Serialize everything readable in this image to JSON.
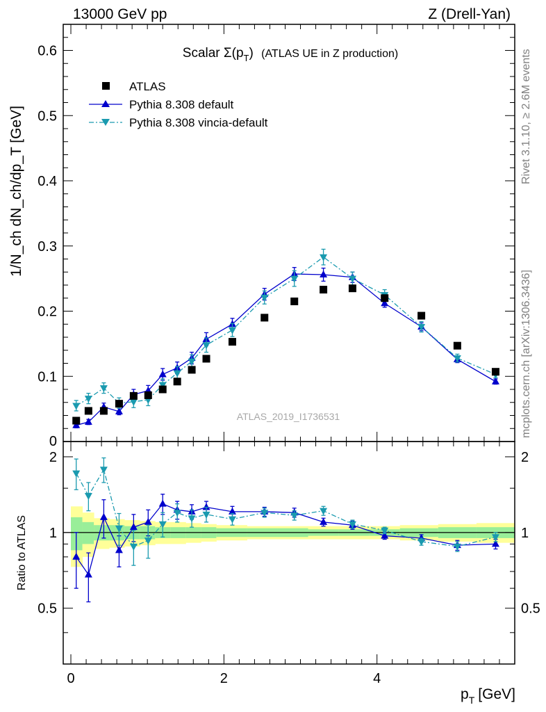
{
  "header": {
    "energy_label": "13000 GeV pp",
    "process_label": "Z (Drell-Yan)"
  },
  "side_labels": {
    "rivet": "Rivet 3.1.10, ≥ 2.6M events",
    "mcplots": "mcplots.cern.ch [arXiv:1306.3436]"
  },
  "chart_data": {
    "type": "scatter",
    "title_main": "Scalar Σ(p",
    "title_sub": "T",
    "title_close": ")",
    "title_rest": "(ATLAS UE in Z production)",
    "analysis_id": "ATLAS_2019_I1736531",
    "xlabel": "p",
    "xlabel_sub": "T",
    "xlabel_unit": "[GeV]",
    "ylabel": "1/N_ch dN_ch/dp_T [GeV]",
    "ratio_ylabel": "Ratio to ATLAS",
    "xlim": [
      -0.1,
      5.8
    ],
    "ylim": [
      0,
      0.64
    ],
    "ratio_ylim": [
      0.3,
      2.3
    ],
    "x_ticks": [
      "0",
      "2",
      "4"
    ],
    "y_ticks": [
      "0.1",
      "0.2",
      "0.3",
      "0.4",
      "0.5",
      "0.6"
    ],
    "y_zero_tick": "0",
    "ratio_ticks": [
      "0.5",
      "1",
      "2"
    ],
    "legend_position": "top-left",
    "x": [
      0.07,
      0.23,
      0.43,
      0.63,
      0.82,
      1.01,
      1.2,
      1.39,
      1.58,
      1.77,
      2.11,
      2.53,
      2.92,
      3.3,
      3.68,
      4.1,
      4.58,
      5.05,
      5.55
    ],
    "band_edges": [
      0,
      0.15,
      0.3,
      0.5,
      0.7,
      0.9,
      1.1,
      1.3,
      1.5,
      1.7,
      1.9,
      2.3,
      2.7,
      3.1,
      3.5,
      3.9,
      4.3,
      4.8,
      5.3,
      5.8
    ],
    "band_yellow": [
      0.27,
      0.2,
      0.14,
      0.13,
      0.12,
      0.11,
      0.1,
      0.1,
      0.09,
      0.08,
      0.07,
      0.06,
      0.06,
      0.06,
      0.06,
      0.06,
      0.07,
      0.08,
      0.09
    ],
    "band_green": [
      0.15,
      0.1,
      0.07,
      0.07,
      0.06,
      0.06,
      0.05,
      0.05,
      0.05,
      0.05,
      0.04,
      0.04,
      0.04,
      0.03,
      0.03,
      0.03,
      0.04,
      0.05,
      0.05
    ],
    "series": [
      {
        "name": "ATLAS",
        "kind": "data",
        "color": "#000000",
        "values": [
          0.032,
          0.047,
          0.047,
          0.058,
          0.07,
          0.071,
          0.08,
          0.092,
          0.11,
          0.127,
          0.153,
          0.19,
          0.215,
          0.233,
          0.235,
          0.22,
          0.193,
          0.147,
          0.107
        ],
        "errors": [
          0.002,
          0.002,
          0.002,
          0.002,
          0.002,
          0.002,
          0.002,
          0.002,
          0.002,
          0.002,
          0.002,
          0.003,
          0.003,
          0.003,
          0.003,
          0.003,
          0.003,
          0.003,
          0.003
        ]
      },
      {
        "name": "Pythia 8.308 default",
        "kind": "mc",
        "color": "#0000cc",
        "values": [
          0.025,
          0.03,
          0.053,
          0.046,
          0.072,
          0.078,
          0.103,
          0.113,
          0.128,
          0.157,
          0.18,
          0.226,
          0.257,
          0.256,
          0.252,
          0.212,
          0.176,
          0.126,
          0.092
        ],
        "errors": [
          0.004,
          0.004,
          0.006,
          0.005,
          0.008,
          0.008,
          0.009,
          0.009,
          0.009,
          0.01,
          0.009,
          0.009,
          0.01,
          0.01,
          0.008,
          0.006,
          0.006,
          0.005,
          0.004
        ],
        "ratio": [
          0.8,
          0.68,
          1.15,
          0.85,
          1.05,
          1.1,
          1.3,
          1.23,
          1.21,
          1.26,
          1.21,
          1.21,
          1.2,
          1.1,
          1.07,
          0.97,
          0.95,
          0.89,
          0.9
        ],
        "ratio_errors": [
          0.2,
          0.15,
          0.2,
          0.12,
          0.13,
          0.13,
          0.12,
          0.1,
          0.08,
          0.07,
          0.06,
          0.05,
          0.05,
          0.04,
          0.04,
          0.03,
          0.03,
          0.04,
          0.04
        ]
      },
      {
        "name": "Pythia 8.308 vincia-default",
        "kind": "mc",
        "color": "#1a9aaf",
        "values": [
          0.055,
          0.066,
          0.082,
          0.059,
          0.061,
          0.064,
          0.087,
          0.105,
          0.123,
          0.148,
          0.171,
          0.221,
          0.25,
          0.283,
          0.25,
          0.225,
          0.176,
          0.128,
          0.103
        ],
        "errors": [
          0.008,
          0.008,
          0.008,
          0.008,
          0.009,
          0.009,
          0.009,
          0.01,
          0.01,
          0.011,
          0.01,
          0.01,
          0.012,
          0.012,
          0.01,
          0.008,
          0.008,
          0.006,
          0.005
        ],
        "ratio": [
          1.72,
          1.4,
          1.78,
          1.04,
          0.88,
          0.93,
          1.08,
          1.2,
          1.14,
          1.18,
          1.13,
          1.2,
          1.17,
          1.22,
          1.08,
          1.02,
          0.92,
          0.88,
          0.96
        ],
        "ratio_errors": [
          0.24,
          0.18,
          0.2,
          0.15,
          0.14,
          0.14,
          0.12,
          0.1,
          0.09,
          0.08,
          0.06,
          0.05,
          0.05,
          0.05,
          0.04,
          0.03,
          0.03,
          0.04,
          0.04
        ]
      }
    ]
  }
}
